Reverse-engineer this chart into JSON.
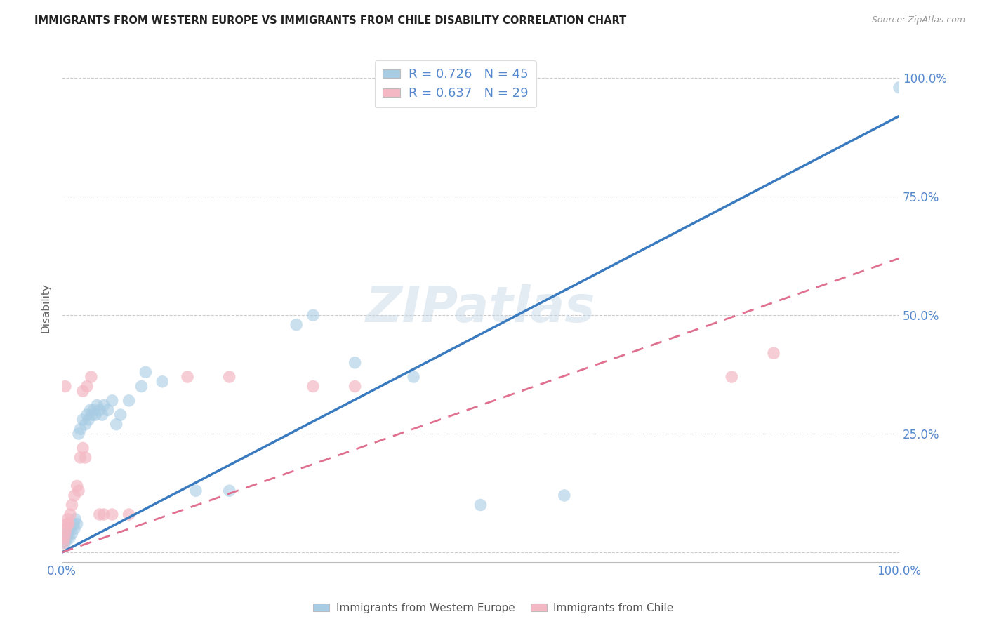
{
  "title": "IMMIGRANTS FROM WESTERN EUROPE VS IMMIGRANTS FROM CHILE DISABILITY CORRELATION CHART",
  "source": "Source: ZipAtlas.com",
  "ylabel": "Disability",
  "watermark": "ZIPatlas",
  "blue_R": 0.726,
  "blue_N": 45,
  "pink_R": 0.637,
  "pink_N": 29,
  "blue_color": "#a8cce4",
  "pink_color": "#f4b8c4",
  "blue_line_color": "#3a7abf",
  "pink_line_color": "#e07090",
  "blue_scatter": [
    [
      0.002,
      0.02
    ],
    [
      0.003,
      0.03
    ],
    [
      0.004,
      0.02
    ],
    [
      0.005,
      0.04
    ],
    [
      0.006,
      0.03
    ],
    [
      0.007,
      0.05
    ],
    [
      0.008,
      0.04
    ],
    [
      0.009,
      0.03
    ],
    [
      0.01,
      0.05
    ],
    [
      0.012,
      0.04
    ],
    [
      0.014,
      0.06
    ],
    [
      0.015,
      0.05
    ],
    [
      0.016,
      0.07
    ],
    [
      0.018,
      0.06
    ],
    [
      0.02,
      0.25
    ],
    [
      0.022,
      0.26
    ],
    [
      0.025,
      0.28
    ],
    [
      0.028,
      0.27
    ],
    [
      0.03,
      0.29
    ],
    [
      0.032,
      0.28
    ],
    [
      0.034,
      0.3
    ],
    [
      0.036,
      0.29
    ],
    [
      0.038,
      0.3
    ],
    [
      0.04,
      0.29
    ],
    [
      0.042,
      0.31
    ],
    [
      0.045,
      0.3
    ],
    [
      0.048,
      0.29
    ],
    [
      0.05,
      0.31
    ],
    [
      0.055,
      0.3
    ],
    [
      0.06,
      0.32
    ],
    [
      0.065,
      0.27
    ],
    [
      0.07,
      0.29
    ],
    [
      0.08,
      0.32
    ],
    [
      0.095,
      0.35
    ],
    [
      0.1,
      0.38
    ],
    [
      0.12,
      0.36
    ],
    [
      0.16,
      0.13
    ],
    [
      0.2,
      0.13
    ],
    [
      0.28,
      0.48
    ],
    [
      0.3,
      0.5
    ],
    [
      0.35,
      0.4
    ],
    [
      0.42,
      0.37
    ],
    [
      0.5,
      0.1
    ],
    [
      0.6,
      0.12
    ],
    [
      1.0,
      0.98
    ]
  ],
  "pink_scatter": [
    [
      0.002,
      0.02
    ],
    [
      0.003,
      0.03
    ],
    [
      0.004,
      0.04
    ],
    [
      0.005,
      0.05
    ],
    [
      0.006,
      0.06
    ],
    [
      0.007,
      0.07
    ],
    [
      0.008,
      0.06
    ],
    [
      0.01,
      0.08
    ],
    [
      0.012,
      0.1
    ],
    [
      0.015,
      0.12
    ],
    [
      0.018,
      0.14
    ],
    [
      0.02,
      0.13
    ],
    [
      0.022,
      0.2
    ],
    [
      0.025,
      0.22
    ],
    [
      0.028,
      0.2
    ],
    [
      0.03,
      0.35
    ],
    [
      0.025,
      0.34
    ],
    [
      0.035,
      0.37
    ],
    [
      0.045,
      0.08
    ],
    [
      0.05,
      0.08
    ],
    [
      0.06,
      0.08
    ],
    [
      0.08,
      0.08
    ],
    [
      0.15,
      0.37
    ],
    [
      0.2,
      0.37
    ],
    [
      0.3,
      0.35
    ],
    [
      0.35,
      0.35
    ],
    [
      0.004,
      0.35
    ],
    [
      0.8,
      0.37
    ],
    [
      0.85,
      0.42
    ]
  ],
  "blue_line": [
    [
      0.0,
      0.0
    ],
    [
      1.0,
      0.92
    ]
  ],
  "pink_line": [
    [
      0.0,
      0.0
    ],
    [
      1.0,
      0.62
    ]
  ],
  "xlim": [
    0,
    1.0
  ],
  "ylim": [
    -0.02,
    1.05
  ],
  "yticks": [
    0.0,
    0.25,
    0.5,
    0.75,
    1.0
  ],
  "ytick_labels_right": [
    "",
    "25.0%",
    "50.0%",
    "75.0%",
    "100.0%"
  ],
  "xticks": [
    0.0,
    0.25,
    0.5,
    0.75,
    1.0
  ],
  "xtick_labels": [
    "0.0%",
    "",
    "",
    "",
    "100.0%"
  ],
  "grid_color": "#cccccc",
  "tick_color": "#5588cc",
  "background_color": "#ffffff"
}
